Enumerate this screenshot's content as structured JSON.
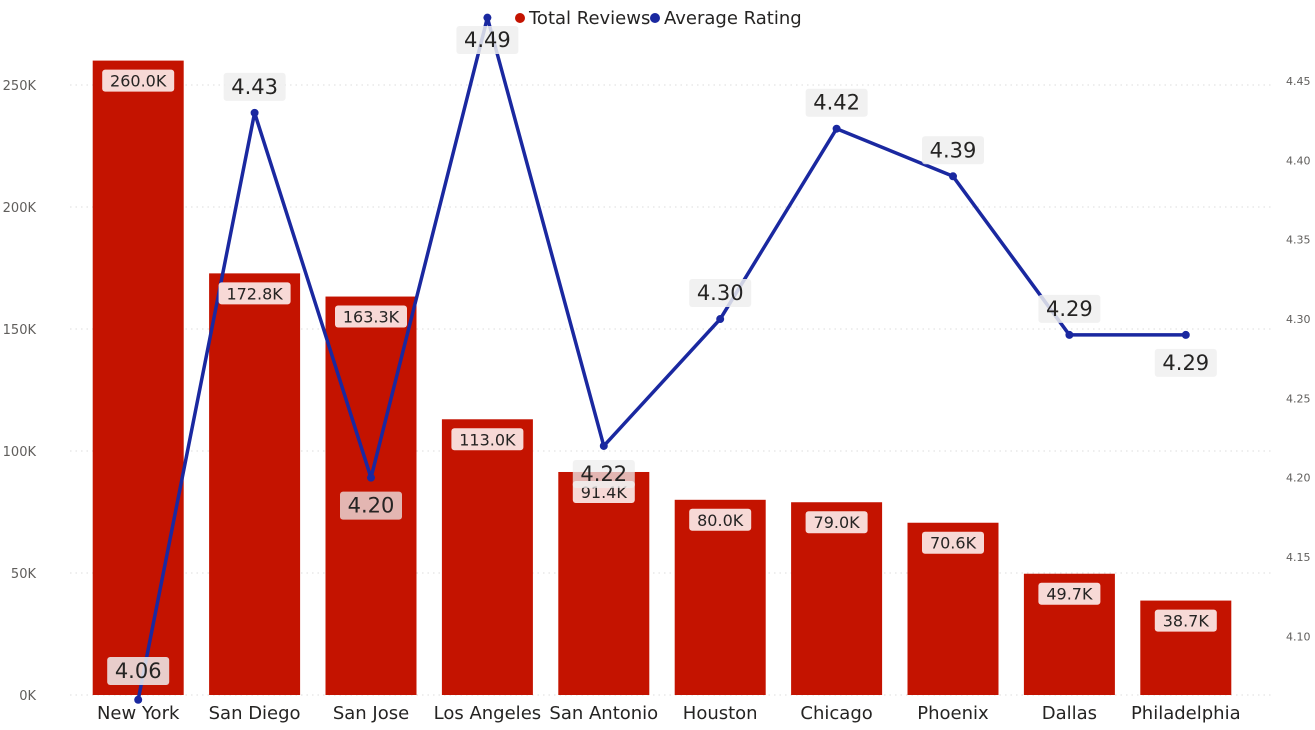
{
  "chart_data": {
    "type": "bar",
    "combo": "bar-line",
    "title": "",
    "xlabel": "",
    "ylabel": "",
    "categories": [
      "New York",
      "San Diego",
      "San Jose",
      "Los Angeles",
      "San Antonio",
      "Houston",
      "Chicago",
      "Phoenix",
      "Dallas",
      "Philadelphia"
    ],
    "series": [
      {
        "name": "Total Reviews",
        "type": "bar",
        "axis": "left",
        "color": "#c41300",
        "values": [
          260000,
          172800,
          163300,
          113000,
          91400,
          80000,
          79000,
          70600,
          49700,
          38700
        ],
        "labels": [
          "260.0K",
          "172.8K",
          "163.3K",
          "113.0K",
          "91.4K",
          "80.0K",
          "79.0K",
          "70.6K",
          "49.7K",
          "38.7K"
        ]
      },
      {
        "name": "Average Rating",
        "type": "line",
        "axis": "right",
        "color": "#1a28a0",
        "values": [
          4.06,
          4.43,
          4.2,
          4.49,
          4.22,
          4.3,
          4.42,
          4.39,
          4.29,
          4.29
        ],
        "labels": [
          "4.06",
          "4.43",
          "4.20",
          "4.49",
          "4.22",
          "4.30",
          "4.42",
          "4.39",
          "4.29",
          "4.29"
        ]
      }
    ],
    "y_left": {
      "range": [
        0,
        275000
      ],
      "ticks": [
        0,
        50000,
        100000,
        150000,
        200000,
        250000
      ],
      "tick_labels": [
        "0K",
        "50K",
        "100K",
        "150K",
        "200K",
        "250K"
      ]
    },
    "y_right": {
      "range": [
        4.063,
        4.486
      ],
      "ticks": [
        4.1,
        4.15,
        4.2,
        4.25,
        4.3,
        4.35,
        4.4,
        4.45
      ],
      "tick_labels": [
        "4.10",
        "4.15",
        "4.20",
        "4.25",
        "4.30",
        "4.35",
        "4.40",
        "4.45"
      ]
    },
    "grid": true,
    "legend": "top-center"
  }
}
